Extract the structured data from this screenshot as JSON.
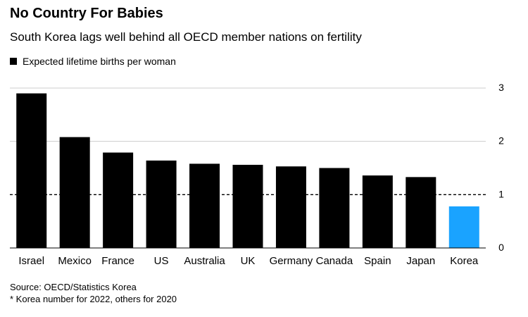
{
  "header": {
    "title": "No Country For Babies",
    "subtitle": "South Korea lags well behind all OECD member nations on fertility"
  },
  "legend": {
    "label": "Expected lifetime births per woman"
  },
  "footer": {
    "source": "Source: OECD/Statistics Korea",
    "note": "* Korea number for 2022, others for 2020"
  },
  "colors": {
    "default_bar": "#000000",
    "highlight_bar": "#1aa3ff",
    "grid": "#cccccc"
  },
  "chart_data": {
    "type": "bar",
    "categories": [
      "Israel",
      "Mexico",
      "France",
      "US",
      "Australia",
      "UK",
      "Germany",
      "Canada",
      "Spain",
      "Japan",
      "Korea"
    ],
    "series": [
      {
        "name": "Expected lifetime births per woman",
        "values": [
          2.9,
          2.08,
          1.79,
          1.64,
          1.58,
          1.56,
          1.53,
          1.5,
          1.36,
          1.33,
          0.78
        ]
      }
    ],
    "highlight": "Korea",
    "reference_line": {
      "value": 1,
      "style": "dashed"
    },
    "ylim": [
      0,
      3
    ],
    "yticks": [
      "0",
      "1",
      "2",
      "3"
    ],
    "y_axis_position": "right",
    "grid": true
  }
}
